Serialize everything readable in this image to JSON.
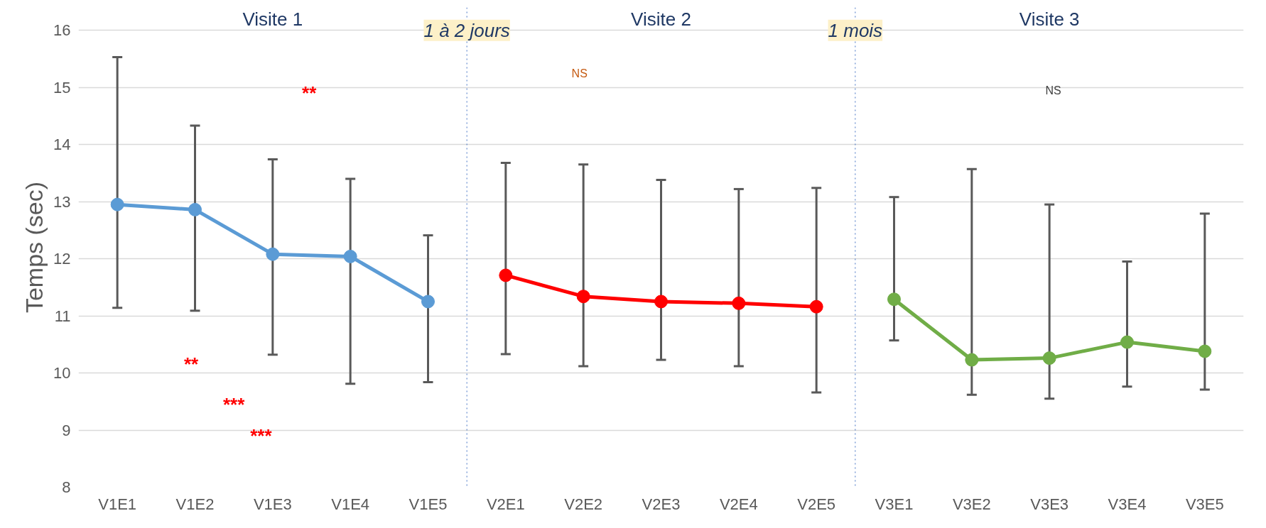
{
  "chart_data": {
    "type": "line",
    "ylabel": "Temps (sec)",
    "categories": [
      "V1E1",
      "V1E2",
      "V1E3",
      "V1E4",
      "V1E5",
      "V2E1",
      "V2E2",
      "V2E3",
      "V2E4",
      "V2E5",
      "V3E1",
      "V3E2",
      "V3E3",
      "V3E4",
      "V3E5"
    ],
    "series": [
      {
        "color": "#5b9bd5",
        "values": [
          12.95,
          12.86,
          12.08,
          12.04,
          11.25,
          null,
          null,
          null,
          null,
          null,
          null,
          null,
          null,
          null,
          null
        ],
        "errors": [
          [
            11.14,
            15.53
          ],
          [
            11.09,
            14.33
          ],
          [
            10.32,
            13.74
          ],
          [
            9.81,
            13.4
          ],
          [
            9.84,
            12.41
          ],
          null,
          null,
          null,
          null,
          null,
          null,
          null,
          null,
          null,
          null
        ]
      },
      {
        "color": "#ff0000",
        "values": [
          null,
          null,
          null,
          null,
          null,
          11.71,
          11.34,
          11.25,
          11.22,
          11.16,
          null,
          null,
          null,
          null,
          null
        ],
        "errors": [
          null,
          null,
          null,
          null,
          null,
          [
            10.33,
            13.68
          ],
          [
            10.12,
            13.65
          ],
          [
            10.23,
            13.38
          ],
          [
            10.12,
            13.22
          ],
          [
            9.66,
            13.24
          ],
          null,
          null,
          null,
          null,
          null
        ]
      },
      {
        "color": "#70ad47",
        "values": [
          null,
          null,
          null,
          null,
          null,
          null,
          null,
          null,
          null,
          null,
          11.29,
          10.23,
          10.26,
          10.54,
          10.38
        ],
        "errors": [
          null,
          null,
          null,
          null,
          null,
          null,
          null,
          null,
          null,
          null,
          [
            10.57,
            13.08
          ],
          [
            9.62,
            13.57
          ],
          [
            9.55,
            12.95
          ],
          [
            9.76,
            11.95
          ],
          [
            9.71,
            12.79
          ]
        ]
      }
    ],
    "ylim": [
      8,
      16.4
    ],
    "yticks": [
      8,
      9,
      10,
      11,
      12,
      13,
      14,
      15,
      16
    ],
    "grid": "y",
    "marker": "circle",
    "line_style": "solid",
    "annotations": [
      "Visite 1",
      "1 à 2 jours",
      "Visite 2",
      "1 mois",
      "Visite 3",
      "**",
      "NS",
      "NS",
      "**",
      "***",
      "***"
    ]
  }
}
